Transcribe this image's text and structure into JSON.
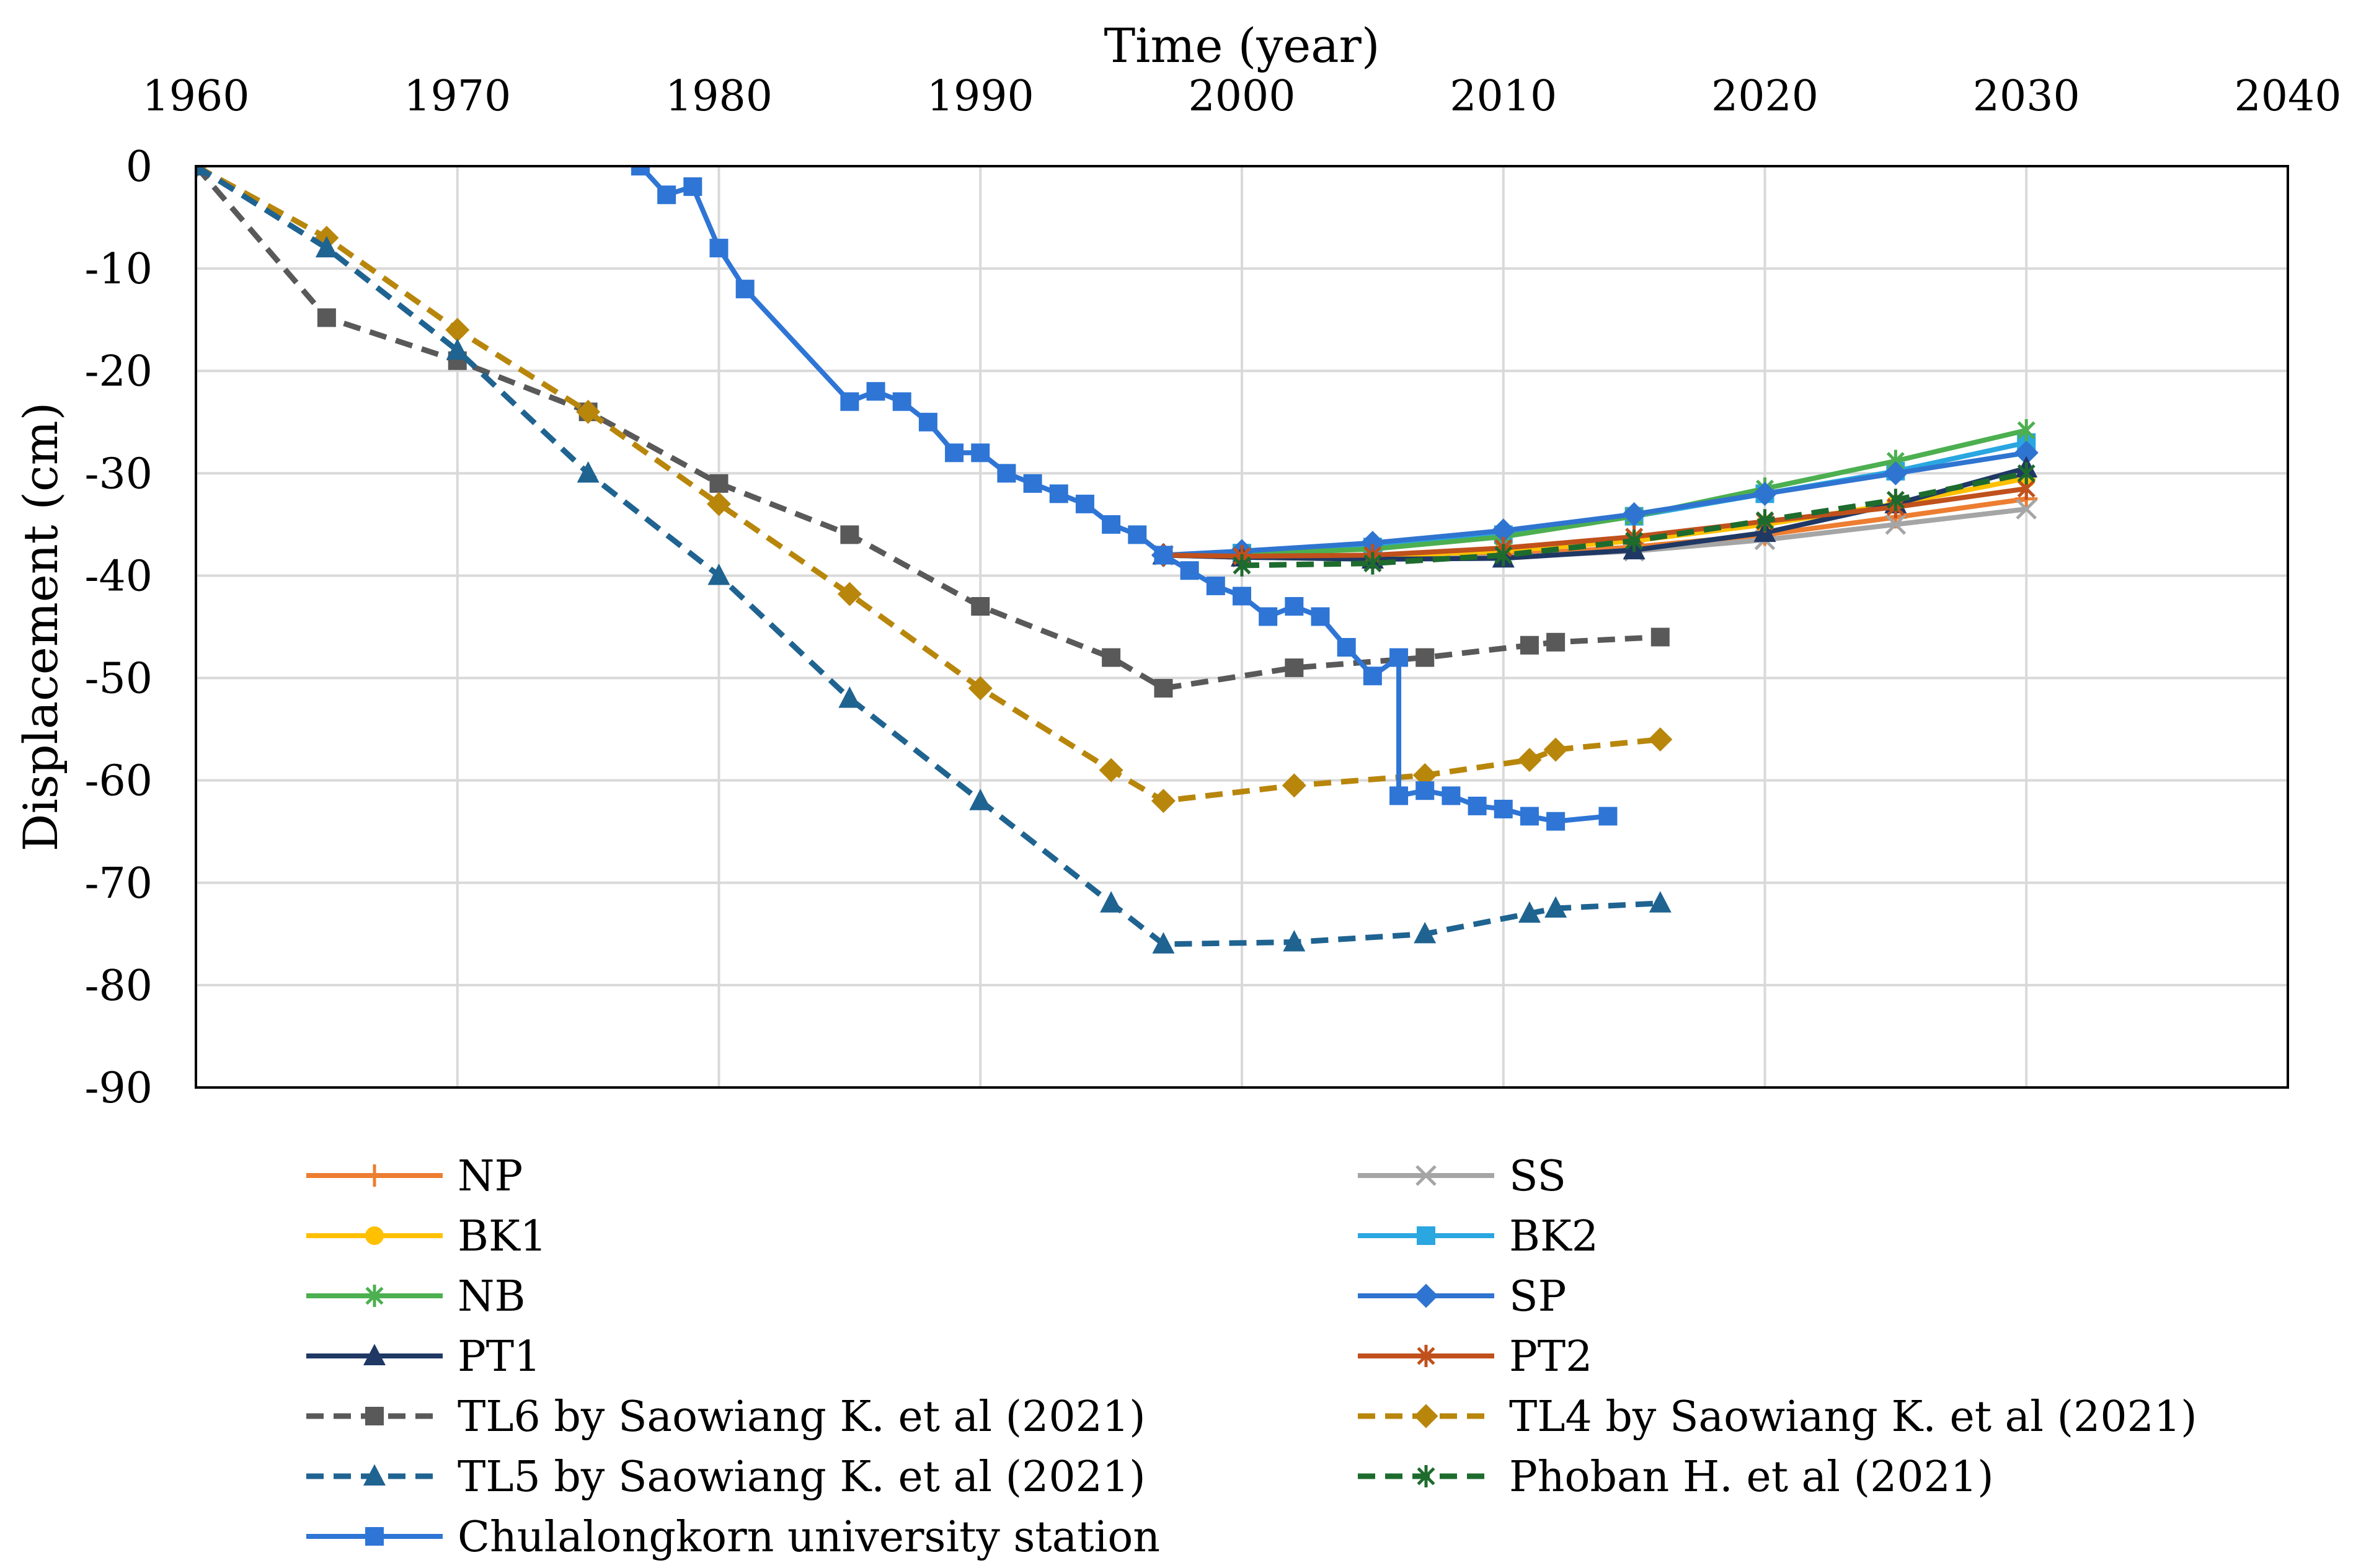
{
  "chart_data": {
    "type": "line",
    "title": "",
    "xlabel": "Time (year)",
    "ylabel": "Displacement (cm)",
    "xlim": [
      1960,
      2040
    ],
    "ylim": [
      -90,
      0
    ],
    "xticks": [
      "1960",
      "1970",
      "1980",
      "1990",
      "2000",
      "2010",
      "2020",
      "2030",
      "2040"
    ],
    "yticks": [
      "0",
      "-10",
      "-20",
      "-30",
      "-40",
      "-50",
      "-60",
      "-70",
      "-80",
      "-90"
    ],
    "grid": true,
    "x_axis_position": "top",
    "legend_position": "bottom",
    "series": [
      {
        "name": "NP",
        "color": "#ED7D31",
        "dash": "solid",
        "marker": "plus",
        "x": [
          1997,
          2000,
          2005,
          2010,
          2015,
          2020,
          2025,
          2030
        ],
        "y": [
          -38,
          -38.2,
          -38.3,
          -38,
          -37.2,
          -36,
          -34.3,
          -32.5
        ]
      },
      {
        "name": "SS",
        "color": "#A5A5A5",
        "dash": "solid",
        "marker": "x",
        "x": [
          1997,
          2000,
          2005,
          2010,
          2015,
          2020,
          2025,
          2030
        ],
        "y": [
          -38,
          -38.2,
          -38.4,
          -38.2,
          -37.6,
          -36.5,
          -35,
          -33.5
        ]
      },
      {
        "name": "BK1",
        "color": "#FFC000",
        "dash": "solid",
        "marker": "circle",
        "x": [
          1997,
          2000,
          2005,
          2010,
          2015,
          2020,
          2025,
          2030
        ],
        "y": [
          -38,
          -38.1,
          -38.1,
          -37.6,
          -36.6,
          -35,
          -33,
          -30.5
        ]
      },
      {
        "name": "BK2",
        "color": "#2AA6E0",
        "dash": "solid",
        "marker": "square",
        "x": [
          1997,
          2000,
          2005,
          2010,
          2015,
          2020,
          2025,
          2030
        ],
        "y": [
          -38,
          -37.8,
          -37.2,
          -36,
          -34.2,
          -32,
          -29.8,
          -27
        ]
      },
      {
        "name": "NB",
        "color": "#4CAF50",
        "dash": "solid",
        "marker": "asterisk",
        "x": [
          1997,
          2000,
          2005,
          2010,
          2015,
          2020,
          2025,
          2030
        ],
        "y": [
          -38,
          -37.9,
          -37.4,
          -36.2,
          -34.2,
          -31.5,
          -28.8,
          -25.8
        ]
      },
      {
        "name": "SP",
        "color": "#2F74D0",
        "dash": "solid",
        "marker": "diamond",
        "x": [
          1997,
          2000,
          2005,
          2010,
          2015,
          2020,
          2025,
          2030
        ],
        "y": [
          -38,
          -37.6,
          -36.8,
          -35.6,
          -34,
          -32,
          -30,
          -28
        ]
      },
      {
        "name": "PT1",
        "color": "#1F3864",
        "dash": "solid",
        "marker": "triangle",
        "x": [
          1997,
          2000,
          2005,
          2010,
          2015,
          2020,
          2025,
          2030
        ],
        "y": [
          -38,
          -38.2,
          -38.4,
          -38.3,
          -37.5,
          -35.8,
          -33,
          -29.5
        ]
      },
      {
        "name": "PT2",
        "color": "#C0501C",
        "dash": "solid",
        "marker": "asterisk",
        "x": [
          1997,
          2000,
          2005,
          2010,
          2015,
          2020,
          2025,
          2030
        ],
        "y": [
          -38,
          -38.1,
          -38,
          -37.3,
          -36.2,
          -34.7,
          -33.3,
          -31.5
        ]
      },
      {
        "name": "TL6 by Saowiang K. et al (2021)",
        "color": "#595959",
        "dash": "dashed",
        "marker": "square",
        "x": [
          1960,
          1965,
          1970,
          1975,
          1980,
          1985,
          1990,
          1995,
          1997,
          2002,
          2007,
          2011,
          2012,
          2016
        ],
        "y": [
          0,
          -14.8,
          -19,
          -24,
          -31,
          -36,
          -43,
          -48,
          -51,
          -49,
          -48,
          -46.8,
          -46.5,
          -46
        ]
      },
      {
        "name": "TL4 by Saowiang K. et al (2021)",
        "color": "#B8860B",
        "dash": "dashed",
        "marker": "diamond",
        "x": [
          1960,
          1965,
          1970,
          1975,
          1980,
          1985,
          1990,
          1995,
          1997,
          2002,
          2007,
          2011,
          2012,
          2016
        ],
        "y": [
          0,
          -7,
          -16,
          -24,
          -33,
          -41.8,
          -51,
          -59,
          -62,
          -60.5,
          -59.5,
          -58,
          -57,
          -56
        ]
      },
      {
        "name": "TL5 by Saowiang K. et al (2021)",
        "color": "#1F6391",
        "dash": "dashed",
        "marker": "triangle",
        "x": [
          1960,
          1965,
          1970,
          1975,
          1980,
          1985,
          1990,
          1995,
          1997,
          2002,
          2007,
          2011,
          2012,
          2016
        ],
        "y": [
          0,
          -8,
          -18,
          -30,
          -40,
          -52,
          -62,
          -72,
          -76,
          -75.8,
          -75,
          -73,
          -72.5,
          -72
        ]
      },
      {
        "name": "Phoban H. et al (2021)",
        "color": "#1E6B2E",
        "dash": "dashed",
        "marker": "asterisk",
        "x": [
          2000,
          2005,
          2010,
          2015,
          2020,
          2025,
          2030
        ],
        "y": [
          -39,
          -38.8,
          -38,
          -36.6,
          -34.6,
          -32.6,
          -30
        ]
      },
      {
        "name": "Chulalongkorn university station",
        "color": "#2E75D6",
        "dash": "solid",
        "marker": "square",
        "x": [
          1977,
          1978,
          1979,
          1980,
          1981,
          1985,
          1986,
          1987,
          1988,
          1989,
          1990,
          1991,
          1992,
          1993,
          1994,
          1995,
          1996,
          1997,
          1998,
          1999,
          2000,
          2001,
          2002,
          2003,
          2004,
          2005,
          2006,
          2006,
          2007,
          2008,
          2009,
          2010,
          2011,
          2012,
          2014
        ],
        "y": [
          0,
          -2.8,
          -2,
          -8,
          -12,
          -23,
          -22,
          -23,
          -25,
          -28,
          -28,
          -30,
          -31,
          -32,
          -33,
          -35,
          -36,
          -38,
          -39.5,
          -41,
          -42,
          -44,
          -43,
          -44,
          -47,
          -49.8,
          -48,
          -61.5,
          -61,
          -61.5,
          -62.5,
          -62.8,
          -63.5,
          -64,
          -63.5
        ]
      }
    ]
  }
}
